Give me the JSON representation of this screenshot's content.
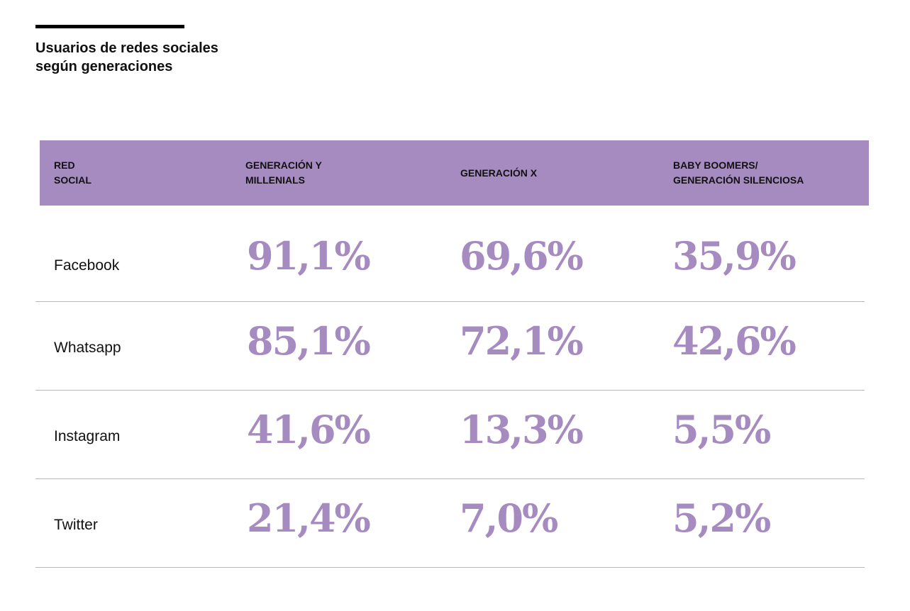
{
  "title_lines": [
    "Usuarios de redes sociales",
    "según generaciones"
  ],
  "colors": {
    "accent": "#a68bc1",
    "text": "#111111",
    "divider": "#b8b8b8",
    "rule": "#000000"
  },
  "chart_data": {
    "type": "table",
    "title": "Usuarios de redes sociales según generaciones",
    "columns": [
      {
        "label_lines": [
          "RED",
          "SOCIAL"
        ]
      },
      {
        "label_lines": [
          "GENERACIÓN Y",
          "MILLENIALS"
        ]
      },
      {
        "label_lines": [
          "GENERACIÓN X"
        ]
      },
      {
        "label_lines": [
          "BABY BOOMERS/",
          "GENERACIÓN SILENCIOSA"
        ]
      }
    ],
    "rows": [
      {
        "name": "Facebook",
        "values": [
          "91,1%",
          "69,6%",
          "35,9%"
        ],
        "numeric": [
          91.1,
          69.6,
          35.9
        ]
      },
      {
        "name": "Whatsapp",
        "values": [
          "85,1%",
          "72,1%",
          "42,6%"
        ],
        "numeric": [
          85.1,
          72.1,
          42.6
        ]
      },
      {
        "name": "Instagram",
        "values": [
          "41,6%",
          "13,3%",
          "5,5%"
        ],
        "numeric": [
          41.6,
          13.3,
          5.5
        ]
      },
      {
        "name": "Twitter",
        "values": [
          "21,4%",
          "7,0%",
          "5,2%"
        ],
        "numeric": [
          21.4,
          7.0,
          5.2
        ]
      }
    ],
    "unit": "%"
  }
}
